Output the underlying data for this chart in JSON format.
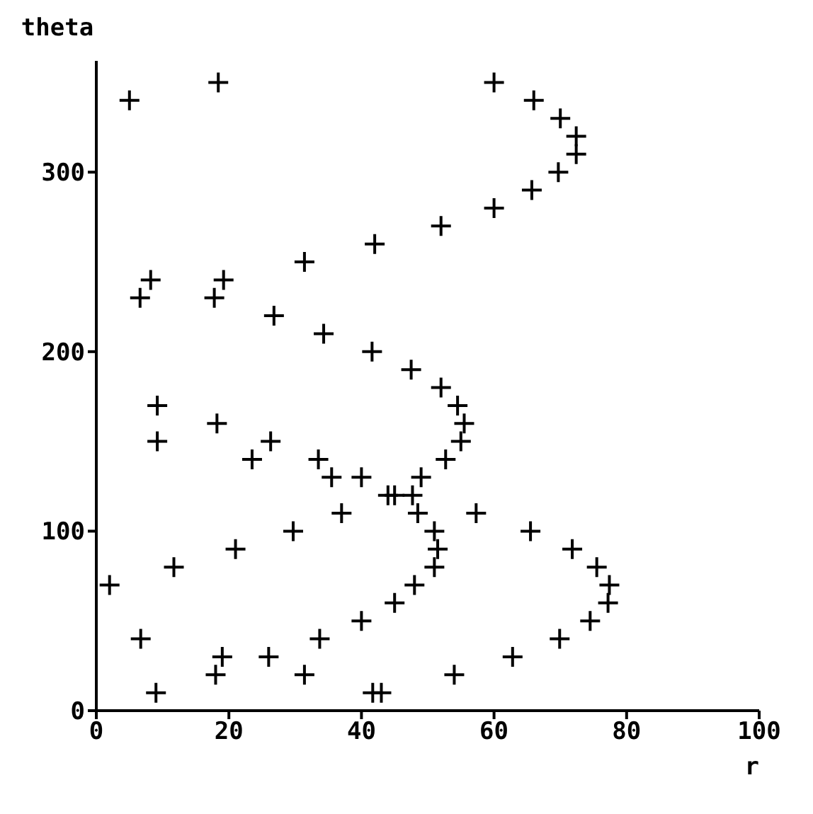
{
  "chart_data": {
    "type": "scatter",
    "xlabel": "r",
    "ylabel": "theta",
    "marker": "cross",
    "grid": false,
    "x": [
      5,
      18.4,
      60,
      66,
      70,
      72.4,
      72.4,
      69.7,
      65.7,
      60,
      52,
      42,
      31.4,
      19.2,
      8.2,
      6.6,
      17.8,
      26.8,
      34.3,
      41.6,
      47.5,
      52,
      54.5,
      55.5,
      55,
      52.7,
      49,
      44,
      45,
      47.7,
      48.5,
      51,
      51.5,
      51,
      48,
      45,
      40,
      33.7,
      31.4,
      26,
      19,
      18,
      9,
      6.7,
      2,
      11.7,
      21,
      29.7,
      37,
      35.5,
      40,
      33.5,
      26.3,
      23.5,
      18.2,
      9.2,
      9.2,
      41.7,
      43,
      54,
      62.8,
      69.9,
      74.5,
      77.2,
      77.4,
      75.5,
      71.8,
      65.5,
      57.3
    ],
    "series": [
      {
        "color": "#000000",
        "values": [
          340,
          350,
          350,
          340,
          330,
          320,
          310,
          300,
          290,
          280,
          270,
          260,
          250,
          240,
          240,
          230,
          230,
          220,
          210,
          200,
          190,
          180,
          170,
          160,
          150,
          140,
          130,
          120,
          120,
          120,
          110,
          100,
          90,
          80,
          70,
          60,
          50,
          40,
          20,
          30,
          30,
          20,
          10,
          40,
          70,
          80,
          90,
          100,
          110,
          130,
          130,
          140,
          150,
          140,
          160,
          150,
          170,
          10,
          10,
          20,
          30,
          40,
          50,
          60,
          70,
          80,
          90,
          100,
          110
        ]
      }
    ],
    "xlim": [
      0,
      100
    ],
    "ylim": [
      0,
      362
    ],
    "xticks": [
      0,
      20,
      40,
      60,
      80,
      100
    ],
    "yticks": [
      0,
      100,
      200,
      300
    ]
  }
}
